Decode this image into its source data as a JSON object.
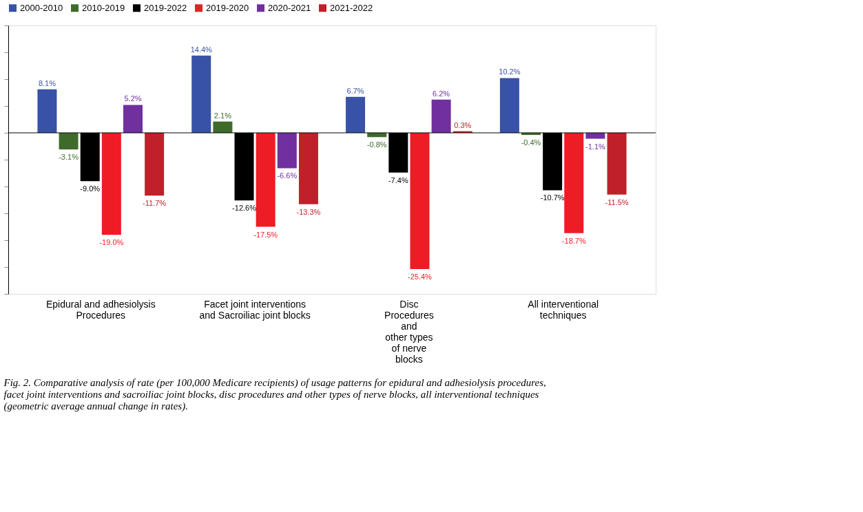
{
  "chart_data": {
    "type": "bar",
    "categories": [
      "Epidural and adhesiolysis\nProcedures",
      "Facet joint interventions\nand Sacroiliac joint blocks",
      "Disc\nProcedures\nand\nother types\nof nerve\nblocks",
      "All interventional\ntechniques"
    ],
    "series": [
      {
        "name": "2000-2010",
        "color": "#3752a6",
        "values": [
          8.1,
          14.4,
          6.7,
          10.2
        ],
        "value_labels": [
          "8.1%",
          "14.4%",
          "6.7%",
          "10.2%"
        ]
      },
      {
        "name": "2010-2019",
        "color": "#3e6b2a",
        "values": [
          -3.1,
          2.1,
          -0.8,
          -0.4
        ],
        "value_labels": [
          "-3.1%",
          "2.1%",
          "-0.8%",
          "-0.4%"
        ]
      },
      {
        "name": "2019-2022",
        "color": "#000000",
        "values": [
          -9.0,
          -12.6,
          -7.4,
          -10.7
        ],
        "value_labels": [
          "-9.0%",
          "-12.6%",
          "-7.4%",
          "-10.7%"
        ]
      },
      {
        "name": "2019-2020",
        "color": "#ee1c24",
        "values": [
          -19.0,
          -17.5,
          -25.4,
          -18.7
        ],
        "value_labels": [
          "-19.0%",
          "-17.5%",
          "-25.4%",
          "-18.7%"
        ]
      },
      {
        "name": "2020-2021",
        "color": "#7030a0",
        "values": [
          5.2,
          -6.6,
          6.2,
          -1.1
        ],
        "value_labels": [
          "5.2%",
          "-6.6%",
          "6.2%",
          "-1.1%"
        ]
      },
      {
        "name": "2021-2022",
        "color": "#c0202a",
        "values": [
          -11.7,
          -13.3,
          0.3,
          -11.5
        ],
        "value_labels": [
          "-11.7%",
          "-13.3%",
          "0.3%",
          "-11.5%"
        ]
      }
    ],
    "tick_labels": "x",
    "legend": "top",
    "grid": false,
    "annotations": [
      "Fig. 2. Comparative analysis of rate (per 100,000 Medicare recipients) of usage patterns for epidural and adhesiolysis procedures, facet joint interventions and sacroiliac joint blocks, disc procedures and other types of nerve blocks, all interventional techniques (geometric average annual change in rates)."
    ]
  }
}
